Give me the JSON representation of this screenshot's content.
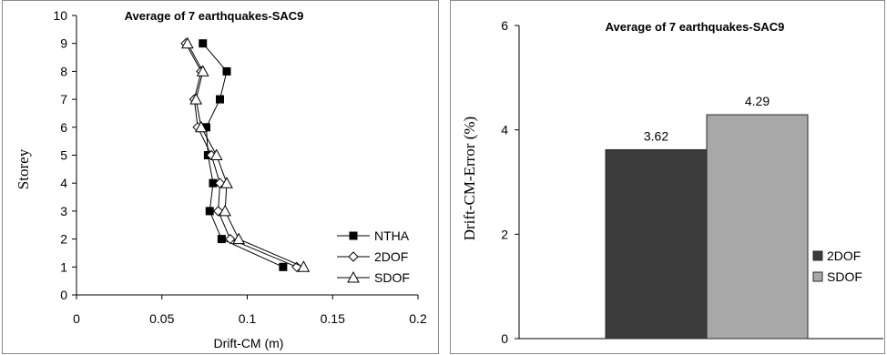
{
  "chart_data": [
    {
      "type": "line",
      "title": "Average of 7 earthquakes-SAC9",
      "xlabel": "Drift-CM (m)",
      "ylabel": "Storey",
      "xlim": [
        0,
        0.2
      ],
      "ylim": [
        0,
        10
      ],
      "x_ticks": [
        "0",
        "0.05",
        "0.1",
        "0.15",
        "0.2"
      ],
      "y_ticks": [
        "0",
        "1",
        "2",
        "3",
        "4",
        "5",
        "6",
        "7",
        "8",
        "9",
        "10"
      ],
      "y": [
        1,
        2,
        3,
        4,
        5,
        6,
        7,
        8,
        9
      ],
      "series": [
        {
          "name": "NTHA",
          "marker": "square",
          "x": [
            0.121,
            0.085,
            0.078,
            0.08,
            0.077,
            0.076,
            0.084,
            0.088,
            0.074
          ]
        },
        {
          "name": "2DOF",
          "marker": "diamond",
          "x": [
            0.129,
            0.09,
            0.083,
            0.084,
            0.079,
            0.071,
            0.069,
            0.073,
            0.064
          ]
        },
        {
          "name": "SDOF",
          "marker": "triangle",
          "x": [
            0.133,
            0.095,
            0.087,
            0.088,
            0.082,
            0.073,
            0.07,
            0.074,
            0.065
          ]
        }
      ],
      "legend_position": "right"
    },
    {
      "type": "bar",
      "title": "Average of 7 earthquakes-SAC9",
      "xlabel": "",
      "ylabel": "Drift-CM-Error (%)",
      "ylim": [
        0,
        6
      ],
      "y_ticks": [
        "0",
        "2",
        "4",
        "6"
      ],
      "series": [
        {
          "name": "2DOF",
          "value": 3.62,
          "label": "3.62",
          "color": "#3b3b3b"
        },
        {
          "name": "SDOF",
          "value": 4.29,
          "label": "4.29",
          "color": "#a8a8a8"
        }
      ],
      "legend_position": "right"
    }
  ]
}
